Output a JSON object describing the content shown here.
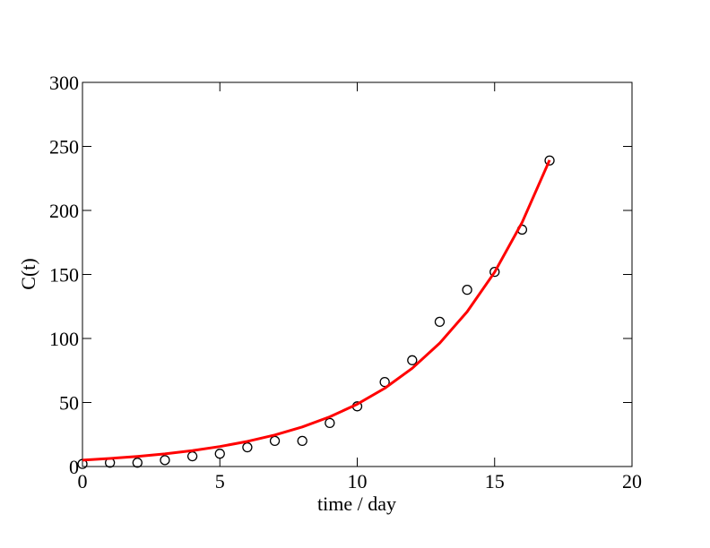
{
  "chart_data": {
    "type": "scatter",
    "xlabel": "time / day",
    "ylabel": "C(t)",
    "xlim": [
      0,
      20
    ],
    "xticks": [
      0,
      5,
      10,
      15,
      20
    ],
    "ylim": [
      0,
      300
    ],
    "yticks": [
      0,
      50,
      100,
      150,
      200,
      250,
      300
    ],
    "series": [
      {
        "type": "scatter",
        "color": "#000000",
        "x": [
          0,
          1,
          2,
          3,
          4,
          5,
          6,
          7,
          8,
          9,
          10,
          11,
          12,
          13,
          14,
          15,
          16,
          17
        ],
        "values": [
          2,
          3,
          3,
          5,
          8,
          10,
          15,
          20,
          20,
          34,
          47,
          66,
          83,
          113,
          138,
          152,
          185,
          239
        ]
      },
      {
        "type": "line",
        "color": "#ff0000",
        "x": [
          0,
          1,
          2,
          3,
          4,
          5,
          6,
          7,
          8,
          9,
          10,
          11,
          12,
          13,
          14,
          15,
          16,
          17
        ],
        "values": [
          5,
          6.3,
          7.9,
          9.9,
          12.4,
          15.6,
          19.6,
          24.6,
          30.9,
          38.8,
          48.7,
          61.1,
          76.7,
          96.3,
          120.9,
          151.8,
          190.6,
          239.3
        ]
      }
    ]
  }
}
